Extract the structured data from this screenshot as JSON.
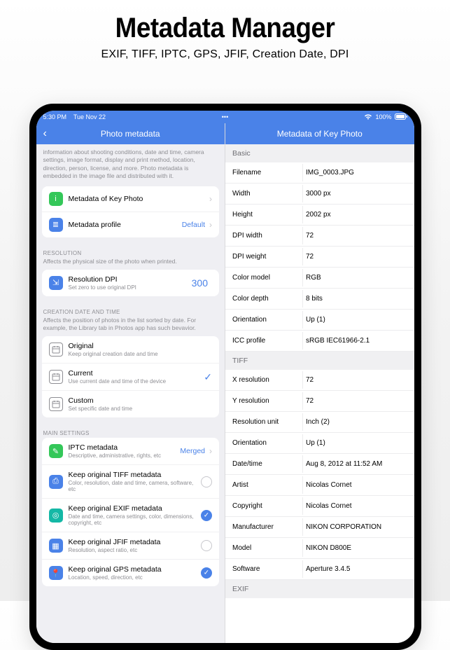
{
  "promo": {
    "title": "Metadata Manager",
    "subtitle": "EXIF, TIFF, IPTC, GPS, JFIF, Creation Date, DPI"
  },
  "statusbar": {
    "time": "5:30 PM",
    "date": "Tue Nov 22",
    "battery": "100%"
  },
  "left": {
    "nav_title": "Photo metadata",
    "intro": "information about shooting conditions, date and time, camera settings, image format, display and print method, location, direction, person, license, and more. Photo metadata is embedded in the image file and distributed with it.",
    "top_items": [
      {
        "icon_color": "#34c759",
        "icon_glyph": "i",
        "title": "Metadata of Key Photo",
        "value": "",
        "show_chevron": true
      },
      {
        "icon_color": "#4a82e8",
        "icon_glyph": "≣",
        "title": "Metadata profile",
        "value": "Default",
        "show_chevron": true
      }
    ],
    "resolution": {
      "header": "RESOLUTION",
      "sub": "Affects the physical size of the photo when printed.",
      "icon_color": "#4a82e8",
      "icon_glyph": "⇲",
      "title": "Resolution DPI",
      "subtitle": "Set zero to use original DPI",
      "value": "300"
    },
    "creation": {
      "header": "CREATION DATE AND TIME",
      "sub": "Affects the position of photos in the list sorted by date. For example, the Library tab in Photos app has such bevavior.",
      "items": [
        {
          "title": "Original",
          "subtitle": "Keep original creation date and time",
          "checked": false
        },
        {
          "title": "Current",
          "subtitle": "Use current date and time of the device",
          "checked": true
        },
        {
          "title": "Custom",
          "subtitle": "Set specific date and time",
          "checked": false
        }
      ]
    },
    "main": {
      "header": "MAIN SETTINGS",
      "items": [
        {
          "icon_color": "#34c759",
          "icon_glyph": "✎",
          "title": "IPTC metadata",
          "subtitle": "Descriptive, administrative, rights, etc",
          "value": "Merged",
          "chevron": true,
          "radio": null
        },
        {
          "icon_color": "#4a82e8",
          "icon_glyph": "⎙",
          "title": "Keep original TIFF metadata",
          "subtitle": "Color, resolution, date and time, camera, software, etc",
          "value": "",
          "chevron": false,
          "radio": false
        },
        {
          "icon_color": "#14b8a6",
          "icon_glyph": "◎",
          "title": "Keep original EXIF metadata",
          "subtitle": "Date and time, camera settings, color, dimensions, copyright, etc",
          "value": "",
          "chevron": false,
          "radio": true
        },
        {
          "icon_color": "#4a82e8",
          "icon_glyph": "▦",
          "title": "Keep original JFIF metadata",
          "subtitle": "Resolution, aspect ratio, etc",
          "value": "",
          "chevron": false,
          "radio": false
        },
        {
          "icon_color": "#4a82e8",
          "icon_glyph": "📍",
          "title": "Keep original GPS metadata",
          "subtitle": "Location, speed, direction, etc",
          "value": "",
          "chevron": false,
          "radio": true
        }
      ]
    }
  },
  "right": {
    "nav_title": "Metadata of Key Photo",
    "groups": [
      {
        "header": "Basic",
        "rows": [
          {
            "k": "Filename",
            "v": "IMG_0003.JPG"
          },
          {
            "k": "Width",
            "v": "3000 px"
          },
          {
            "k": "Height",
            "v": "2002 px"
          },
          {
            "k": "DPI width",
            "v": "72"
          },
          {
            "k": "DPI weight",
            "v": "72"
          },
          {
            "k": "Color model",
            "v": "RGB"
          },
          {
            "k": "Color depth",
            "v": "8 bits"
          },
          {
            "k": "Orientation",
            "v": "Up (1)"
          },
          {
            "k": "ICC profile",
            "v": "sRGB IEC61966-2.1"
          }
        ]
      },
      {
        "header": "TIFF",
        "rows": [
          {
            "k": "X resolution",
            "v": "72"
          },
          {
            "k": "Y resolution",
            "v": "72"
          },
          {
            "k": "Resolution unit",
            "v": "Inch (2)"
          },
          {
            "k": "Orientation",
            "v": "Up (1)"
          },
          {
            "k": "Date/time",
            "v": "Aug 8, 2012 at 11:52 AM"
          },
          {
            "k": "Artist",
            "v": "Nicolas Cornet"
          },
          {
            "k": "Copyright",
            "v": "Nicolas Cornet"
          },
          {
            "k": "Manufacturer",
            "v": "NIKON CORPORATION"
          },
          {
            "k": "Model",
            "v": "NIKON D800E"
          },
          {
            "k": "Software",
            "v": "Aperture 3.4.5"
          }
        ]
      },
      {
        "header": "EXIF",
        "rows": []
      }
    ]
  },
  "colors": {
    "accent": "#4a82e8",
    "bg": "#efeff3",
    "muted": "#8e8e93",
    "sep": "#ececee"
  }
}
